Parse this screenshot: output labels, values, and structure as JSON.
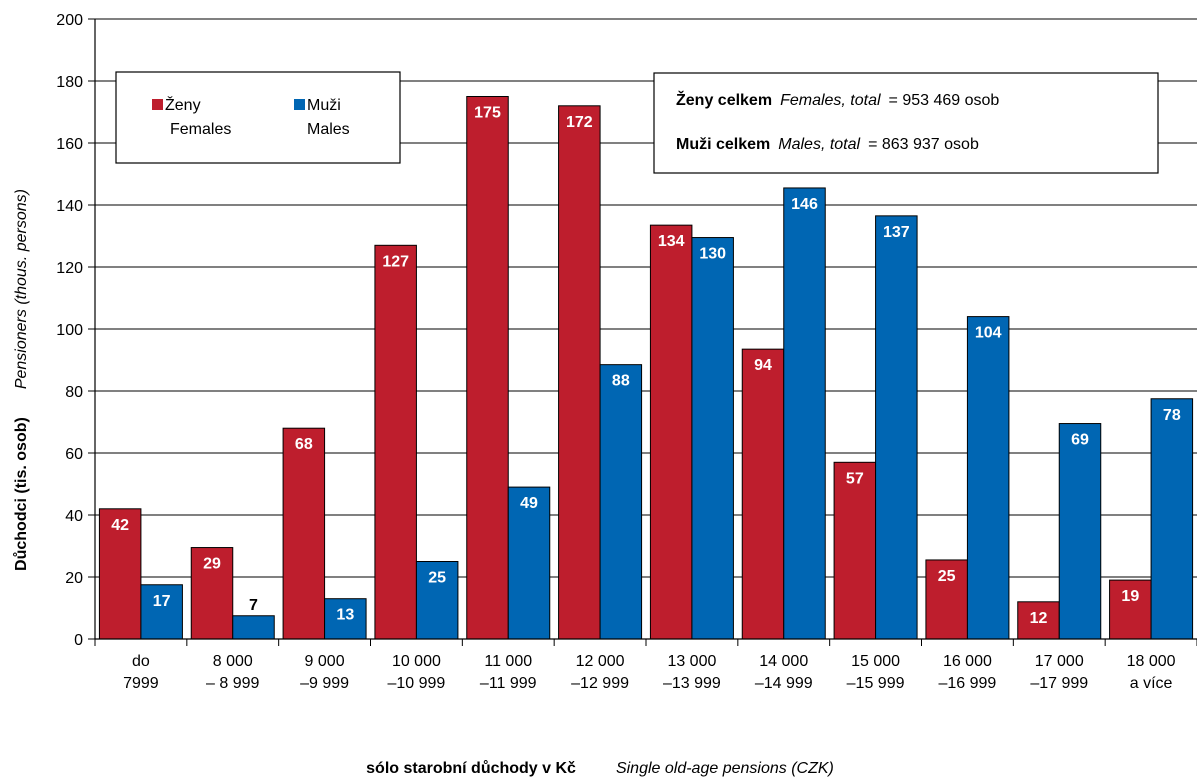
{
  "chart_data": {
    "type": "bar",
    "categories": [
      [
        "do",
        "7999"
      ],
      [
        "8 000",
        "– 8 999"
      ],
      [
        "9 000",
        "–9 999"
      ],
      [
        "10 000",
        "–10 999"
      ],
      [
        "11 000",
        "–11 999"
      ],
      [
        "12 000",
        "–12 999"
      ],
      [
        "13 000",
        "–13 999"
      ],
      [
        "14 000",
        "–14 999"
      ],
      [
        "15 000",
        "–15 999"
      ],
      [
        "16 000",
        "–16 999"
      ],
      [
        "17 000",
        "–17 999"
      ],
      [
        "18 000",
        "a více"
      ]
    ],
    "series": [
      {
        "name": "Ženy",
        "name_en": "Females",
        "color": "#BE1E2D",
        "values": [
          42,
          29,
          68,
          127,
          175,
          172,
          134,
          94,
          57,
          25,
          12,
          19
        ],
        "bar_heights": [
          42,
          29.5,
          68,
          127,
          175,
          172,
          133.5,
          93.5,
          57,
          25.5,
          12,
          19
        ]
      },
      {
        "name": "Muži",
        "name_en": "Males",
        "color": "#0066B3",
        "values": [
          17,
          7,
          13,
          25,
          49,
          88,
          130,
          146,
          137,
          104,
          69,
          78
        ],
        "bar_heights": [
          17.5,
          7.5,
          13,
          25,
          49,
          88.5,
          129.5,
          145.5,
          136.5,
          104,
          69.5,
          77.5
        ]
      }
    ],
    "yticks": [
      0,
      20,
      40,
      60,
      80,
      100,
      120,
      140,
      160,
      180,
      200
    ],
    "ylim": [
      0,
      200
    ],
    "ylabel": "Důchodci (tis. osob)",
    "ylabel_en": "Pensioners (thous. persons)",
    "xlabel": "sólo starobní důchody v Kč",
    "xlabel_en": "Single old-age pensions (CZK)",
    "legend": {
      "placement": "top-left",
      "females_cz": "Ženy",
      "females_en": "Females",
      "males_cz": "Muži",
      "males_en": "Males"
    },
    "totals": {
      "females_cz": "Ženy celkem",
      "females_en": "Females, total",
      "females_value": "= 953 469 osob",
      "males_cz": "Muži celkem",
      "males_en": "Males, total",
      "males_value": "= 863 937 osob"
    },
    "grid": true
  }
}
